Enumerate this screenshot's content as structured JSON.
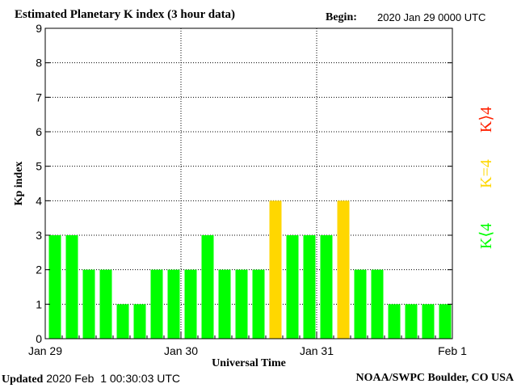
{
  "header": {
    "title": "Estimated Planetary K index (3 hour data)",
    "begin_label": "Begin:",
    "begin_value": "2020 Jan 29 0000 UTC"
  },
  "footer": {
    "updated_label": "Updated",
    "updated_value": "2020 Feb  1 00:30:03 UTC",
    "credit": "NOAA/SWPC Boulder, CO USA"
  },
  "legend": {
    "above": "K⟩4",
    "equal": "K=4",
    "below": "K⟨4"
  },
  "colors": {
    "below": "#00ff00",
    "equal": "#ffd700",
    "above": "#ff2000",
    "grid": "#000000"
  },
  "chart_data": {
    "type": "bar",
    "xlabel": "Universal Time",
    "ylabel": "Kp index",
    "ylim": [
      0,
      9
    ],
    "yticks": [
      "0",
      "1",
      "2",
      "3",
      "4",
      "5",
      "6",
      "7",
      "8",
      "9"
    ],
    "xticks": [
      "Jan 29",
      "Jan 30",
      "Jan 31",
      "Feb 1"
    ],
    "interval_hours": 3,
    "values": [
      3,
      3,
      2,
      2,
      1,
      1,
      2,
      2,
      2,
      3,
      2,
      2,
      2,
      4,
      3,
      3,
      3,
      4,
      2,
      2,
      1,
      1,
      1,
      1
    ],
    "grid": true
  }
}
